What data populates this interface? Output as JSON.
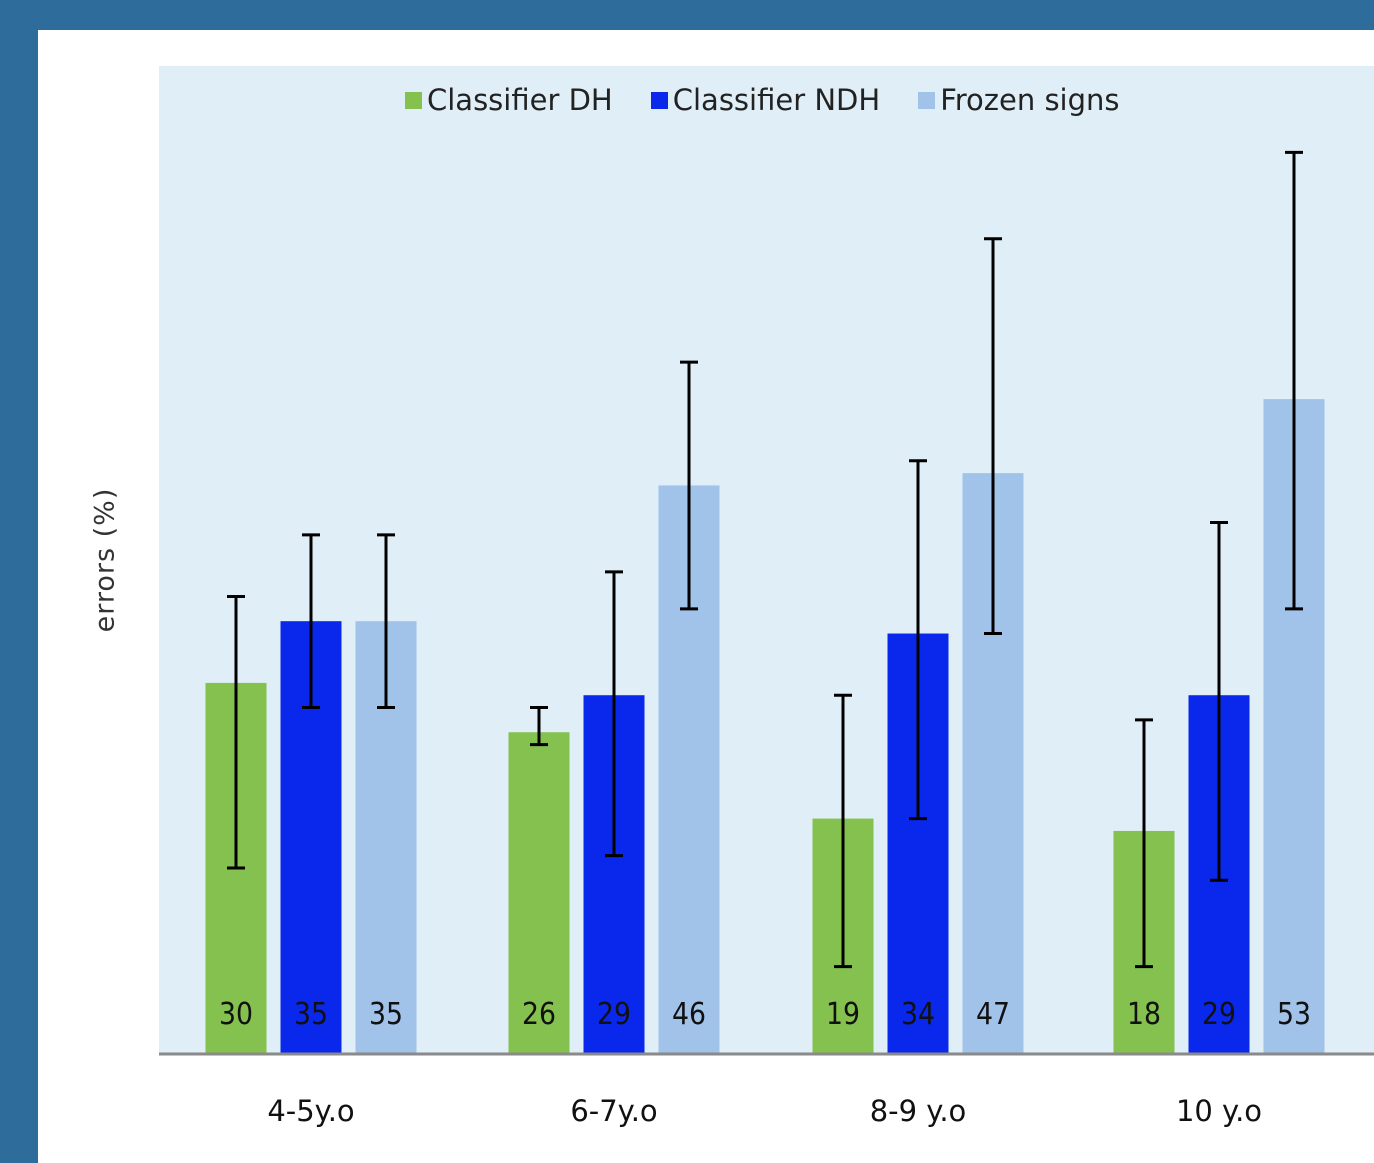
{
  "chart_data": {
    "type": "bar",
    "ylabel": "errors (%)",
    "xlabel": "",
    "ylim": [
      0,
      80
    ],
    "grid": false,
    "legend": "top-center",
    "categories": [
      "4-5y.o",
      "6-7y.o",
      "8-9 y.o",
      "10 y.o"
    ],
    "series": [
      {
        "name": "Classifier DH",
        "color": "#84c14e",
        "values": [
          30,
          26,
          19,
          18
        ],
        "labels": [
          "30",
          "26",
          "19",
          "18"
        ],
        "error": [
          [
            15,
            37
          ],
          [
            25,
            28
          ],
          [
            7,
            29
          ],
          [
            7,
            27
          ]
        ]
      },
      {
        "name": "Classifier NDH",
        "color": "#0a28ec",
        "values": [
          35,
          29,
          34,
          29
        ],
        "labels": [
          "35",
          "29",
          "34",
          "29"
        ],
        "error": [
          [
            28,
            42
          ],
          [
            16,
            39
          ],
          [
            19,
            48
          ],
          [
            14,
            43
          ]
        ]
      },
      {
        "name": "Frozen signs",
        "color": "#a1c2e9",
        "values": [
          35,
          46,
          47,
          53
        ],
        "labels": [
          "35",
          "46",
          "47",
          "53"
        ],
        "error": [
          [
            28,
            42
          ],
          [
            36,
            56
          ],
          [
            34,
            66
          ],
          [
            36,
            73
          ]
        ]
      }
    ]
  }
}
